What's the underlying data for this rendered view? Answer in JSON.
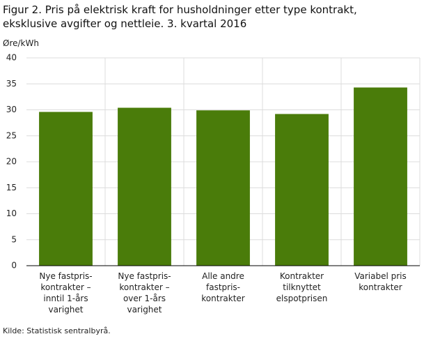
{
  "chart_data": {
    "type": "bar",
    "title": "Figur 2. Pris på elektrisk kraft for husholdninger etter type kontrakt, eksklusive avgifter og nettleie. 3. kvartal 2016",
    "y_label": "Øre/kWh",
    "source": "Kilde: Statistisk sentralbyrå.",
    "categories": [
      "Nye fastpris-\nkontrakter –\ninntil 1-års\nvarighet",
      "Nye fastpris-\nkontrakter –\nover 1-års\nvarighet",
      "Alle andre\nfastpris-\nkontrakter",
      "Kontrakter\ntilknyttet\nelspotprisen",
      "Variabel pris\nkontrakter"
    ],
    "values": [
      29.6,
      30.4,
      29.9,
      29.2,
      34.3
    ],
    "color": "#4a7c0a",
    "ylim": [
      0,
      40
    ],
    "yticks": [
      0,
      5,
      10,
      15,
      20,
      25,
      30,
      35,
      40
    ],
    "grid": true
  }
}
